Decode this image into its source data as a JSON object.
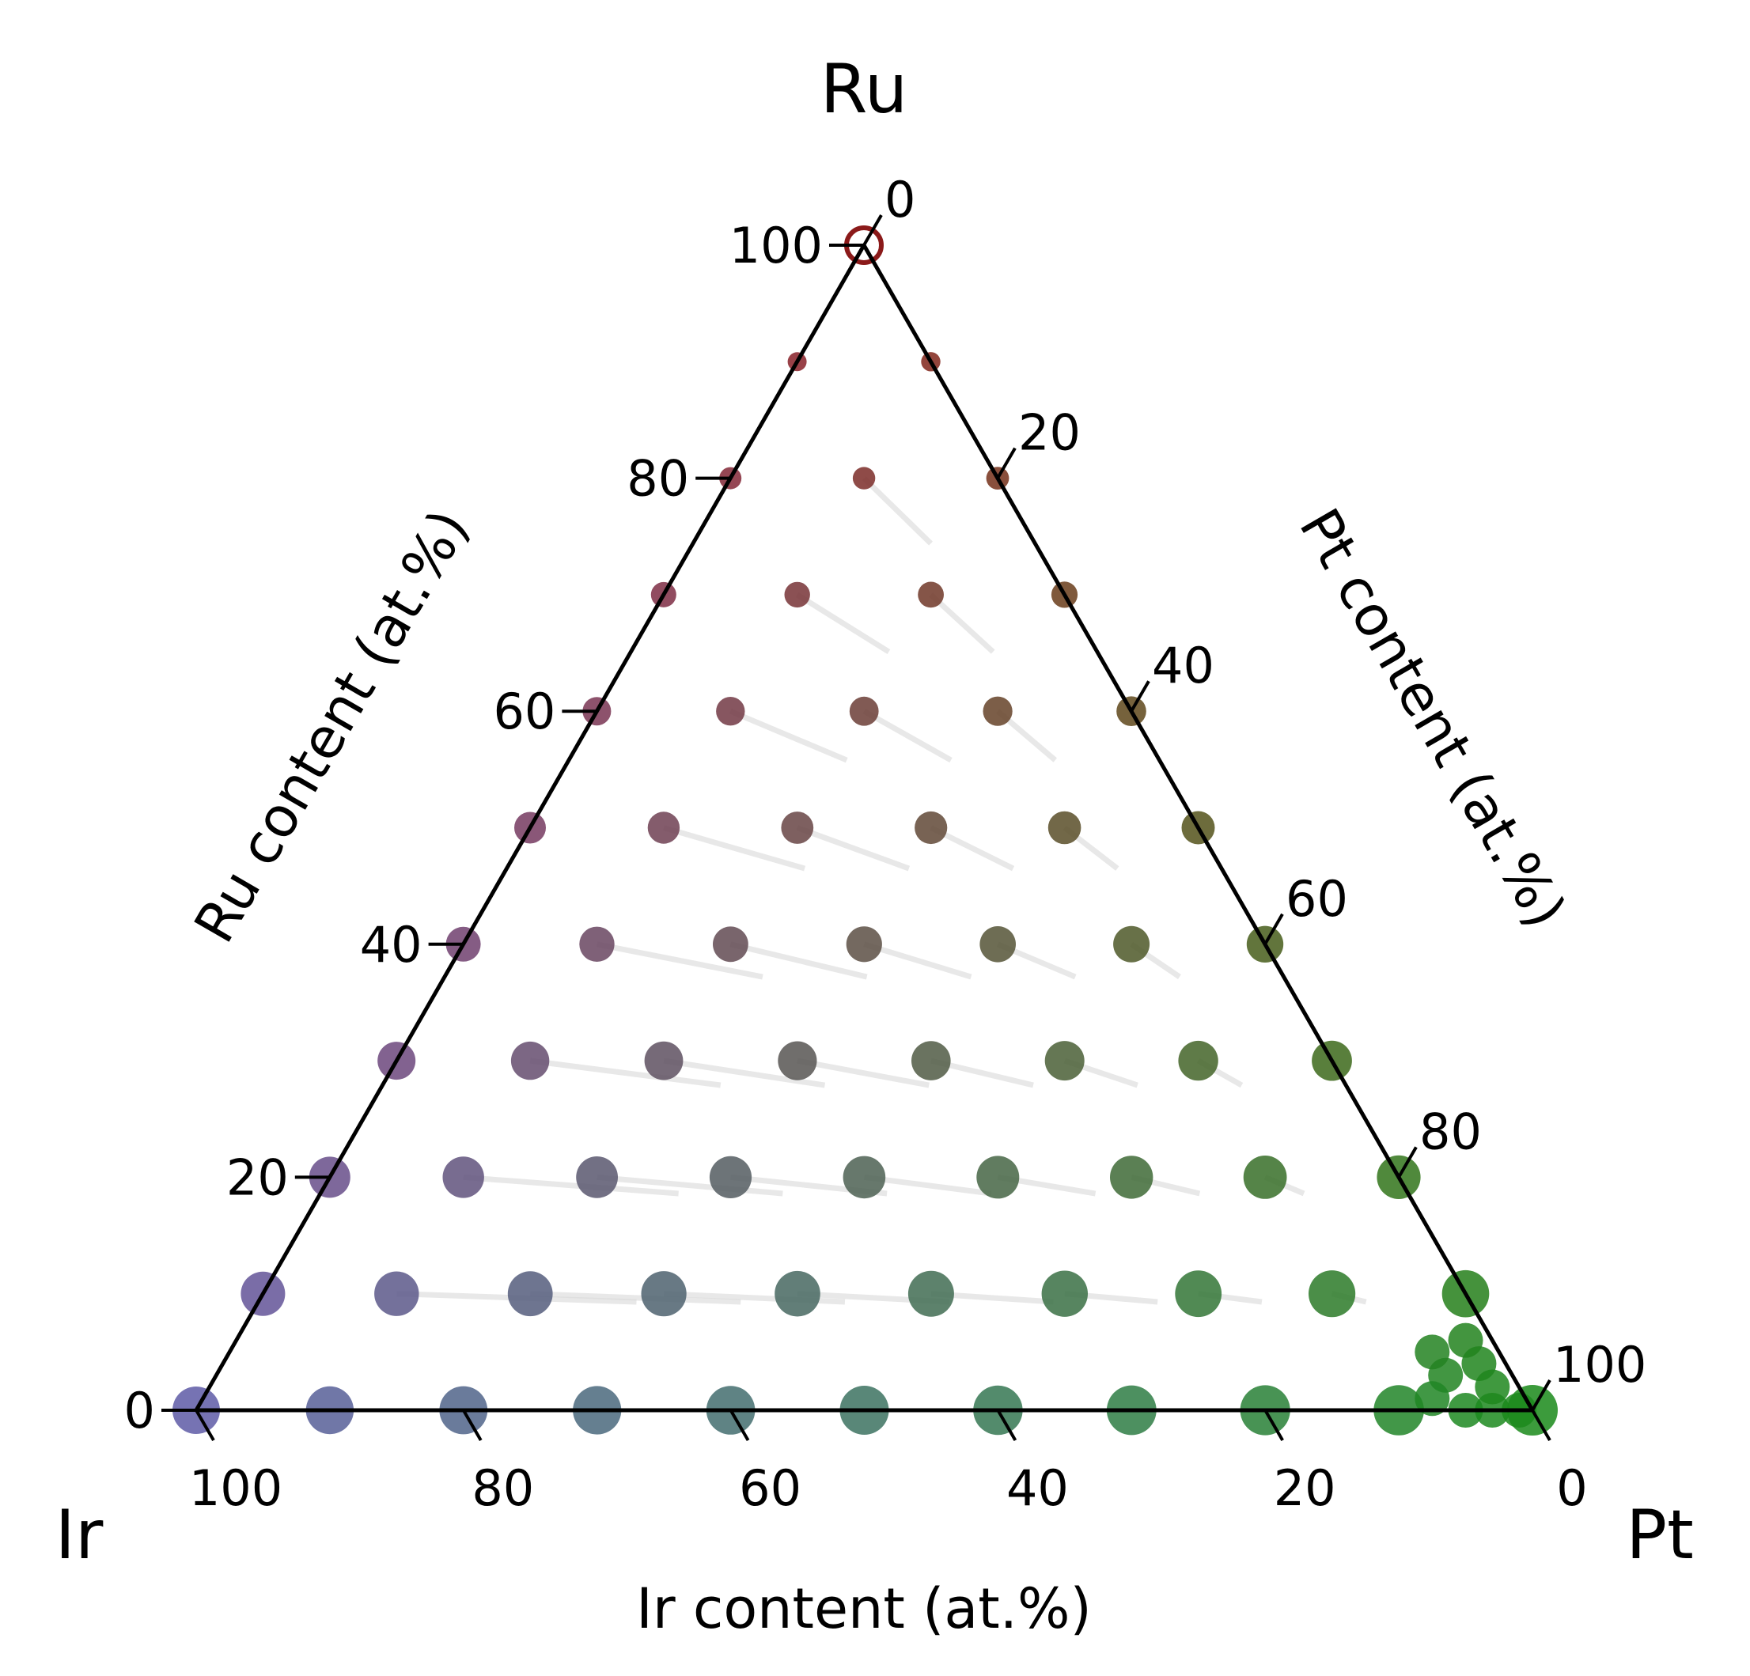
{
  "chart_data": {
    "type": "scatter",
    "subtype": "ternary",
    "components": {
      "top": "Ru",
      "left": "Ir",
      "right": "Pt"
    },
    "axis_titles": {
      "left": "Ru content (at.%)",
      "right": "Pt content (at.%)",
      "bottom": "Ir content (at.%)"
    },
    "ticks": {
      "ru": [
        "0",
        "20",
        "40",
        "60",
        "80",
        "100"
      ],
      "pt": [
        "0",
        "20",
        "40",
        "60",
        "80",
        "100"
      ],
      "ir": [
        "100",
        "80",
        "60",
        "40",
        "20",
        "0"
      ]
    },
    "colors": {
      "Ru": "#8b1a1a",
      "Ir": "#5e5aa6",
      "Pt": "#1a8a1a",
      "guide": "#d9d9d9",
      "axis": "#000000"
    },
    "grid": false,
    "legend": "none",
    "units": "at.%",
    "grid_step_percent": 10,
    "points_note": "Compositions on a 10 at.% grid (Ru, Ir, Pt sum to 100); marker color blends Ru (red), Ir (violet), Pt (green); marker size grows toward Ir/Pt; the pure Ru point is an open circle.",
    "open_marker": {
      "ru": 100,
      "ir": 0,
      "pt": 0
    }
  }
}
